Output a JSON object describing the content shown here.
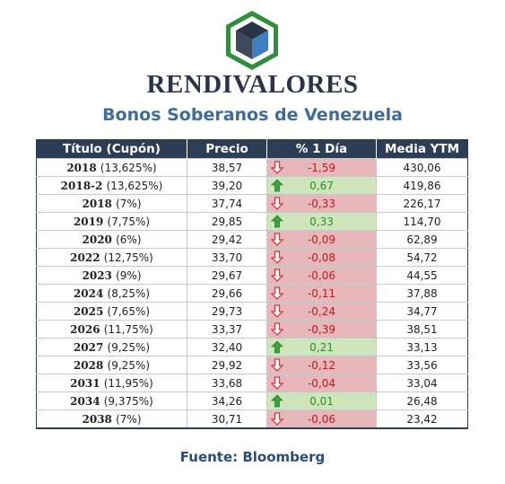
{
  "brand": "RENDIVALORES",
  "subtitle": "Bonos Soberanos de Venezuela",
  "colors": {
    "header_bg": "#2c3e56",
    "negative_fill": "#e8b7b9",
    "positive_fill": "#cfe6bd",
    "negative_text": "#b01e24",
    "positive_text": "#2f8a2a"
  },
  "table": {
    "headers": [
      "Título (Cupón)",
      "Precio",
      "% 1 Día",
      "Media YTM"
    ],
    "rows": [
      {
        "titulo": "2018",
        "cupon": "(13,625%)",
        "precio": "38,57",
        "cambio": "-1,59",
        "dir": "down",
        "ytm": "430,06"
      },
      {
        "titulo": "2018-2",
        "cupon": "(13,625%)",
        "precio": "39,20",
        "cambio": "0,67",
        "dir": "up",
        "ytm": "419,86"
      },
      {
        "titulo": "2018",
        "cupon": "(7%)",
        "precio": "37,74",
        "cambio": "-0,33",
        "dir": "down",
        "ytm": "226,17"
      },
      {
        "titulo": "2019",
        "cupon": "(7,75%)",
        "precio": "29,85",
        "cambio": "0,33",
        "dir": "up",
        "ytm": "114,70"
      },
      {
        "titulo": "2020",
        "cupon": "(6%)",
        "precio": "29,42",
        "cambio": "-0,09",
        "dir": "down",
        "ytm": "62,89"
      },
      {
        "titulo": "2022",
        "cupon": "(12,75%)",
        "precio": "33,70",
        "cambio": "-0,08",
        "dir": "down",
        "ytm": "54,72"
      },
      {
        "titulo": "2023",
        "cupon": "(9%)",
        "precio": "29,67",
        "cambio": "-0,06",
        "dir": "down",
        "ytm": "44,55"
      },
      {
        "titulo": "2024",
        "cupon": "(8,25%)",
        "precio": "29,66",
        "cambio": "-0,11",
        "dir": "down",
        "ytm": "37,88"
      },
      {
        "titulo": "2025",
        "cupon": "(7,65%)",
        "precio": "29,73",
        "cambio": "-0,24",
        "dir": "down",
        "ytm": "34,77"
      },
      {
        "titulo": "2026",
        "cupon": "(11,75%)",
        "precio": "33,37",
        "cambio": "-0,39",
        "dir": "down",
        "ytm": "38,51"
      },
      {
        "titulo": "2027",
        "cupon": "(9,25%)",
        "precio": "32,40",
        "cambio": "0,21",
        "dir": "up",
        "ytm": "33,13"
      },
      {
        "titulo": "2028",
        "cupon": "(9,25%)",
        "precio": "29,92",
        "cambio": "-0,12",
        "dir": "down",
        "ytm": "33,56"
      },
      {
        "titulo": "2031",
        "cupon": "(11,95%)",
        "precio": "33,68",
        "cambio": "-0,04",
        "dir": "down",
        "ytm": "33,04"
      },
      {
        "titulo": "2034",
        "cupon": "(9,375%)",
        "precio": "34,26",
        "cambio": "0,01",
        "dir": "up",
        "ytm": "26,48"
      },
      {
        "titulo": "2038",
        "cupon": "(7%)",
        "precio": "30,71",
        "cambio": "-0,06",
        "dir": "down",
        "ytm": "23,42"
      }
    ]
  },
  "source": "Fuente: Bloomberg"
}
